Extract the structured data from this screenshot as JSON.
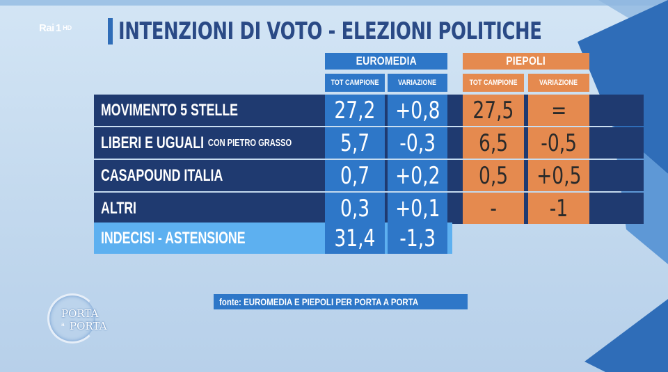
{
  "channel": {
    "name": "Rai",
    "number": "1",
    "quality": "HD"
  },
  "title": "INTENZIONI DI VOTO - ELEZIONI POLITICHE",
  "groups": {
    "euromedia": "EUROMEDIA",
    "piepoli": "PIEPOLI"
  },
  "columns": {
    "e_total": "TOT CAMPIONE",
    "e_var": "VARIAZIONE",
    "p_total": "TOT CAMPIONE",
    "p_var": "VARIAZIONE"
  },
  "rows": [
    {
      "label": "MOVIMENTO 5 STELLE",
      "sub": "",
      "e_total": "27,2",
      "e_var": "+0,8",
      "p_total": "27,5",
      "p_var": "="
    },
    {
      "label": "LIBERI E UGUALI",
      "sub": "CON PIETRO GRASSO",
      "e_total": "5,7",
      "e_var": "-0,3",
      "p_total": "6,5",
      "p_var": "-0,5"
    },
    {
      "label": "CASAPOUND ITALIA",
      "sub": "",
      "e_total": "0,7",
      "e_var": "+0,2",
      "p_total": "0,5",
      "p_var": "+0,5"
    },
    {
      "label": "ALTRI",
      "sub": "",
      "e_total": "0,3",
      "e_var": "+0,1",
      "p_total": "-",
      "p_var": "-1"
    },
    {
      "label": "INDECISI - ASTENSIONE",
      "sub": "",
      "e_total": "31,4",
      "e_var": "-1,3"
    }
  ],
  "source": "fonte: EUROMEDIA E PIEPOLI PER PORTA A PORTA",
  "show_logo": {
    "line1": "PORTA",
    "connector": "a",
    "line2": "PORTA"
  },
  "colors": {
    "euromedia": "#2e77c8",
    "piepoli": "#e58a4f",
    "row_dark": "#1f3a70",
    "row_light": "#5db0f0"
  }
}
